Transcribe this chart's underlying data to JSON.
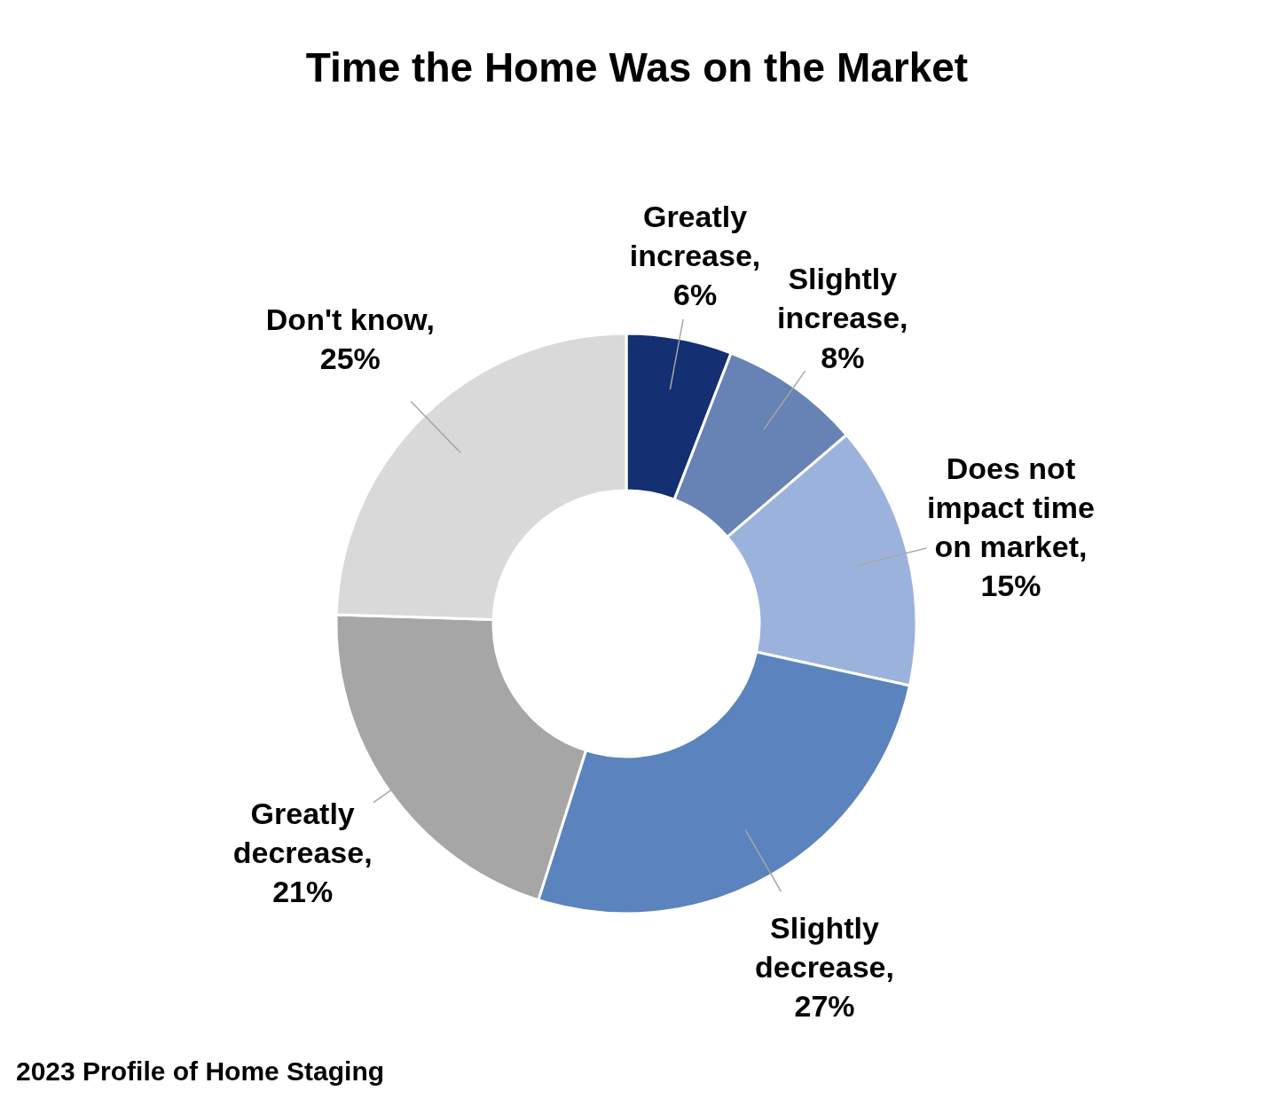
{
  "chart_data": {
    "type": "donut",
    "title": "Time the Home Was on the Market",
    "categories": [
      "Greatly increase",
      "Slightly increase",
      "Does not impact time on market",
      "Slightly decrease",
      "Greatly decrease",
      "Don't know"
    ],
    "values": [
      6,
      8,
      15,
      27,
      21,
      25
    ],
    "value_labels": [
      ", 6%",
      ", 8%",
      ", 15%",
      ", 27%",
      ", 21%",
      ", 25%"
    ],
    "colors": [
      "#142f72",
      "#6782b4",
      "#9bb2dd",
      "#5b83bd",
      "#a6a6a6",
      "#d9d9d9"
    ],
    "annotations": [
      "2023 Profile of Home Staging"
    ]
  }
}
